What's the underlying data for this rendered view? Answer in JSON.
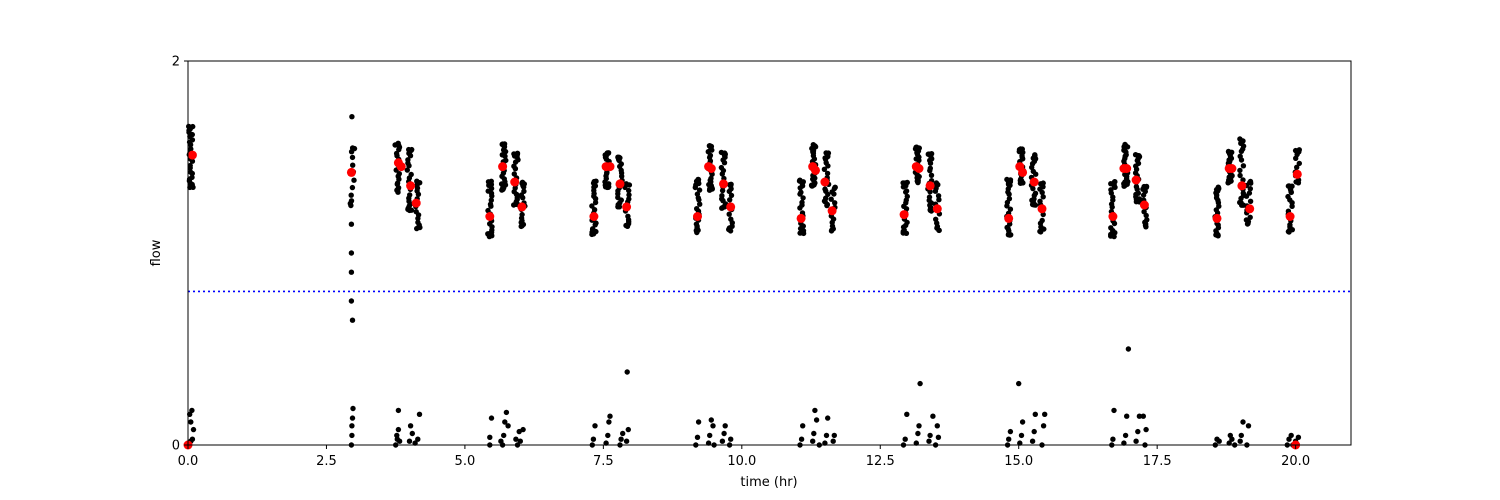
{
  "chart_data": {
    "type": "scatter",
    "title": "",
    "xlabel": "time (hr)",
    "ylabel": "flow",
    "xlim": [
      0,
      21
    ],
    "ylim": [
      0,
      2
    ],
    "xticks": [
      0.0,
      2.5,
      5.0,
      7.5,
      10.0,
      12.5,
      15.0,
      17.5,
      20.0
    ],
    "xtick_labels": [
      "0.0",
      "2.5",
      "5.0",
      "7.5",
      "10.0",
      "12.5",
      "15.0",
      "17.5",
      "20.0"
    ],
    "yticks": [
      0,
      2
    ],
    "ytick_labels": [
      "0",
      "2"
    ],
    "grid": false,
    "threshold": {
      "value": 0.8,
      "color": "#0000ff",
      "style": "dotted"
    },
    "series": [
      {
        "color": "#000000",
        "marker": "small-dot",
        "clusters": [
          {
            "x": 0.05,
            "y_min": 1.34,
            "y_max": 1.66,
            "n": 30
          },
          {
            "x": 2.97,
            "y_min": 1.25,
            "y_max": 1.55,
            "n": 12
          },
          {
            "x": 3.78,
            "y_min": 1.32,
            "y_max": 1.57,
            "n": 22
          },
          {
            "x": 4.0,
            "y_min": 1.22,
            "y_max": 1.54,
            "n": 24
          },
          {
            "x": 4.15,
            "y_min": 1.13,
            "y_max": 1.37,
            "n": 18
          },
          {
            "x": 5.45,
            "y_min": 1.09,
            "y_max": 1.37,
            "n": 24
          },
          {
            "x": 5.7,
            "y_min": 1.33,
            "y_max": 1.57,
            "n": 26
          },
          {
            "x": 5.92,
            "y_min": 1.25,
            "y_max": 1.52,
            "n": 22
          },
          {
            "x": 6.05,
            "y_min": 1.14,
            "y_max": 1.37,
            "n": 18
          },
          {
            "x": 7.33,
            "y_min": 1.1,
            "y_max": 1.37,
            "n": 24
          },
          {
            "x": 7.57,
            "y_min": 1.34,
            "y_max": 1.52,
            "n": 22
          },
          {
            "x": 7.8,
            "y_min": 1.24,
            "y_max": 1.5,
            "n": 22
          },
          {
            "x": 7.93,
            "y_min": 1.14,
            "y_max": 1.36,
            "n": 16
          },
          {
            "x": 9.2,
            "y_min": 1.11,
            "y_max": 1.38,
            "n": 24
          },
          {
            "x": 9.43,
            "y_min": 1.33,
            "y_max": 1.56,
            "n": 24
          },
          {
            "x": 9.67,
            "y_min": 1.23,
            "y_max": 1.52,
            "n": 22
          },
          {
            "x": 9.8,
            "y_min": 1.12,
            "y_max": 1.36,
            "n": 16
          },
          {
            "x": 11.08,
            "y_min": 1.1,
            "y_max": 1.38,
            "n": 24
          },
          {
            "x": 11.3,
            "y_min": 1.35,
            "y_max": 1.56,
            "n": 24
          },
          {
            "x": 11.53,
            "y_min": 1.25,
            "y_max": 1.52,
            "n": 22
          },
          {
            "x": 11.65,
            "y_min": 1.12,
            "y_max": 1.34,
            "n": 16
          },
          {
            "x": 12.95,
            "y_min": 1.1,
            "y_max": 1.37,
            "n": 24
          },
          {
            "x": 13.17,
            "y_min": 1.37,
            "y_max": 1.55,
            "n": 24
          },
          {
            "x": 13.4,
            "y_min": 1.22,
            "y_max": 1.52,
            "n": 22
          },
          {
            "x": 13.53,
            "y_min": 1.12,
            "y_max": 1.36,
            "n": 16
          },
          {
            "x": 14.82,
            "y_min": 1.09,
            "y_max": 1.38,
            "n": 24
          },
          {
            "x": 15.05,
            "y_min": 1.36,
            "y_max": 1.54,
            "n": 24
          },
          {
            "x": 15.27,
            "y_min": 1.25,
            "y_max": 1.51,
            "n": 22
          },
          {
            "x": 15.42,
            "y_min": 1.11,
            "y_max": 1.36,
            "n": 16
          },
          {
            "x": 16.7,
            "y_min": 1.09,
            "y_max": 1.37,
            "n": 24
          },
          {
            "x": 16.93,
            "y_min": 1.35,
            "y_max": 1.56,
            "n": 24
          },
          {
            "x": 17.15,
            "y_min": 1.27,
            "y_max": 1.51,
            "n": 22
          },
          {
            "x": 17.28,
            "y_min": 1.14,
            "y_max": 1.35,
            "n": 16
          },
          {
            "x": 18.58,
            "y_min": 1.09,
            "y_max": 1.34,
            "n": 24
          },
          {
            "x": 18.82,
            "y_min": 1.37,
            "y_max": 1.53,
            "n": 24
          },
          {
            "x": 19.03,
            "y_min": 1.25,
            "y_max": 1.59,
            "n": 22
          },
          {
            "x": 19.15,
            "y_min": 1.15,
            "y_max": 1.37,
            "n": 16
          },
          {
            "x": 19.9,
            "y_min": 1.11,
            "y_max": 1.35,
            "n": 20
          },
          {
            "x": 20.03,
            "y_min": 1.37,
            "y_max": 1.54,
            "n": 12
          }
        ],
        "low_points": [
          [
            0.0,
            0.01
          ],
          [
            0.02,
            0.0
          ],
          [
            0.05,
            0.02
          ],
          [
            0.08,
            0.03
          ],
          [
            0.03,
            0.16
          ],
          [
            0.07,
            0.18
          ],
          [
            0.1,
            0.08
          ],
          [
            0.05,
            0.12
          ],
          [
            2.95,
            0.0
          ],
          [
            2.96,
            0.05
          ],
          [
            2.96,
            0.1
          ],
          [
            2.97,
            0.14
          ],
          [
            2.98,
            0.19
          ],
          [
            2.95,
            0.75
          ],
          [
            2.95,
            0.9
          ],
          [
            2.95,
            1.0
          ],
          [
            2.95,
            1.15
          ],
          [
            2.96,
            1.71
          ],
          [
            2.97,
            0.65
          ],
          [
            3.75,
            0.0
          ],
          [
            3.78,
            0.03
          ],
          [
            3.8,
            0.08
          ],
          [
            3.82,
            0.02
          ],
          [
            3.77,
            0.05
          ],
          [
            3.8,
            0.18
          ],
          [
            4.0,
            0.02
          ],
          [
            4.05,
            0.06
          ],
          [
            4.1,
            0.01
          ],
          [
            4.15,
            0.03
          ],
          [
            4.02,
            0.1
          ],
          [
            4.18,
            0.16
          ],
          [
            5.45,
            0.0
          ],
          [
            5.45,
            0.04
          ],
          [
            5.48,
            0.14
          ],
          [
            5.65,
            0.02
          ],
          [
            5.7,
            0.05
          ],
          [
            5.72,
            0.12
          ],
          [
            5.75,
            0.17
          ],
          [
            5.78,
            0.1
          ],
          [
            5.92,
            0.03
          ],
          [
            5.95,
            0.0
          ],
          [
            5.98,
            0.07
          ],
          [
            6.0,
            0.02
          ],
          [
            6.05,
            0.08
          ],
          [
            5.68,
            0.0
          ],
          [
            7.3,
            0.0
          ],
          [
            7.32,
            0.03
          ],
          [
            7.35,
            0.1
          ],
          [
            7.55,
            0.01
          ],
          [
            7.58,
            0.05
          ],
          [
            7.6,
            0.12
          ],
          [
            7.62,
            0.15
          ],
          [
            7.8,
            0.0
          ],
          [
            7.82,
            0.03
          ],
          [
            7.85,
            0.06
          ],
          [
            7.93,
            0.38
          ],
          [
            7.95,
            0.08
          ],
          [
            7.92,
            0.02
          ],
          [
            9.17,
            0.0
          ],
          [
            9.2,
            0.04
          ],
          [
            9.22,
            0.12
          ],
          [
            9.4,
            0.01
          ],
          [
            9.42,
            0.05
          ],
          [
            9.45,
            0.13
          ],
          [
            9.48,
            0.1
          ],
          [
            9.65,
            0.02
          ],
          [
            9.68,
            0.06
          ],
          [
            9.7,
            0.1
          ],
          [
            9.8,
            0.03
          ],
          [
            9.78,
            0.0
          ],
          [
            9.5,
            0.0
          ],
          [
            11.05,
            0.0
          ],
          [
            11.08,
            0.03
          ],
          [
            11.1,
            0.1
          ],
          [
            11.28,
            0.02
          ],
          [
            11.3,
            0.06
          ],
          [
            11.32,
            0.18
          ],
          [
            11.35,
            0.13
          ],
          [
            11.5,
            0.01
          ],
          [
            11.53,
            0.05
          ],
          [
            11.55,
            0.14
          ],
          [
            11.65,
            0.02
          ],
          [
            11.67,
            0.05
          ],
          [
            11.4,
            0.0
          ],
          [
            12.92,
            0.0
          ],
          [
            12.95,
            0.03
          ],
          [
            12.98,
            0.16
          ],
          [
            13.15,
            0.01
          ],
          [
            13.18,
            0.06
          ],
          [
            13.2,
            0.1
          ],
          [
            13.22,
            0.32
          ],
          [
            13.38,
            0.02
          ],
          [
            13.4,
            0.05
          ],
          [
            13.45,
            0.15
          ],
          [
            13.5,
            0.0
          ],
          [
            13.53,
            0.1
          ],
          [
            13.55,
            0.04
          ],
          [
            14.8,
            0.0
          ],
          [
            14.82,
            0.03
          ],
          [
            14.85,
            0.07
          ],
          [
            15.02,
            0.01
          ],
          [
            15.05,
            0.05
          ],
          [
            15.07,
            0.12
          ],
          [
            15.0,
            0.32
          ],
          [
            15.25,
            0.02
          ],
          [
            15.28,
            0.07
          ],
          [
            15.3,
            0.16
          ],
          [
            15.42,
            0.0
          ],
          [
            15.45,
            0.1
          ],
          [
            15.47,
            0.16
          ],
          [
            16.68,
            0.0
          ],
          [
            16.7,
            0.03
          ],
          [
            16.72,
            0.18
          ],
          [
            16.9,
            0.01
          ],
          [
            16.93,
            0.05
          ],
          [
            16.95,
            0.15
          ],
          [
            16.98,
            0.5
          ],
          [
            17.12,
            0.02
          ],
          [
            17.15,
            0.07
          ],
          [
            17.18,
            0.15
          ],
          [
            17.28,
            0.0
          ],
          [
            17.3,
            0.08
          ],
          [
            17.25,
            0.15
          ],
          [
            18.55,
            0.0
          ],
          [
            18.58,
            0.03
          ],
          [
            18.62,
            0.02
          ],
          [
            18.8,
            0.01
          ],
          [
            18.82,
            0.05
          ],
          [
            18.85,
            0.03
          ],
          [
            19.0,
            0.02
          ],
          [
            19.02,
            0.05
          ],
          [
            19.05,
            0.12
          ],
          [
            19.12,
            0.0
          ],
          [
            19.15,
            0.1
          ],
          [
            18.9,
            0.0
          ],
          [
            19.85,
            0.0
          ],
          [
            19.88,
            0.03
          ],
          [
            19.92,
            0.05
          ],
          [
            19.95,
            0.0
          ],
          [
            20.0,
            0.02
          ],
          [
            20.05,
            0.04
          ]
        ]
      },
      {
        "color": "#ff0000",
        "marker": "large-dot",
        "points": [
          [
            0.0,
            0.0
          ],
          [
            0.08,
            1.51
          ],
          [
            2.95,
            1.42
          ],
          [
            3.8,
            1.47
          ],
          [
            3.85,
            1.45
          ],
          [
            4.02,
            1.35
          ],
          [
            4.12,
            1.26
          ],
          [
            5.45,
            1.19
          ],
          [
            5.68,
            1.45
          ],
          [
            5.9,
            1.37
          ],
          [
            6.03,
            1.24
          ],
          [
            7.33,
            1.19
          ],
          [
            7.55,
            1.45
          ],
          [
            7.62,
            1.45
          ],
          [
            7.8,
            1.36
          ],
          [
            7.92,
            1.24
          ],
          [
            9.2,
            1.19
          ],
          [
            9.4,
            1.45
          ],
          [
            9.45,
            1.44
          ],
          [
            9.67,
            1.36
          ],
          [
            9.8,
            1.24
          ],
          [
            11.07,
            1.18
          ],
          [
            11.28,
            1.45
          ],
          [
            11.33,
            1.43
          ],
          [
            11.5,
            1.37
          ],
          [
            11.63,
            1.22
          ],
          [
            12.93,
            1.2
          ],
          [
            13.15,
            1.45
          ],
          [
            13.2,
            1.44
          ],
          [
            13.4,
            1.35
          ],
          [
            13.53,
            1.23
          ],
          [
            14.82,
            1.18
          ],
          [
            15.02,
            1.45
          ],
          [
            15.07,
            1.42
          ],
          [
            15.28,
            1.37
          ],
          [
            15.42,
            1.23
          ],
          [
            16.7,
            1.19
          ],
          [
            16.9,
            1.44
          ],
          [
            16.95,
            1.44
          ],
          [
            17.12,
            1.38
          ],
          [
            17.27,
            1.25
          ],
          [
            18.58,
            1.18
          ],
          [
            18.8,
            1.44
          ],
          [
            18.85,
            1.44
          ],
          [
            19.03,
            1.35
          ],
          [
            19.17,
            1.23
          ],
          [
            19.9,
            1.19
          ],
          [
            20.03,
            1.41
          ],
          [
            20.0,
            0.0
          ]
        ]
      }
    ]
  }
}
